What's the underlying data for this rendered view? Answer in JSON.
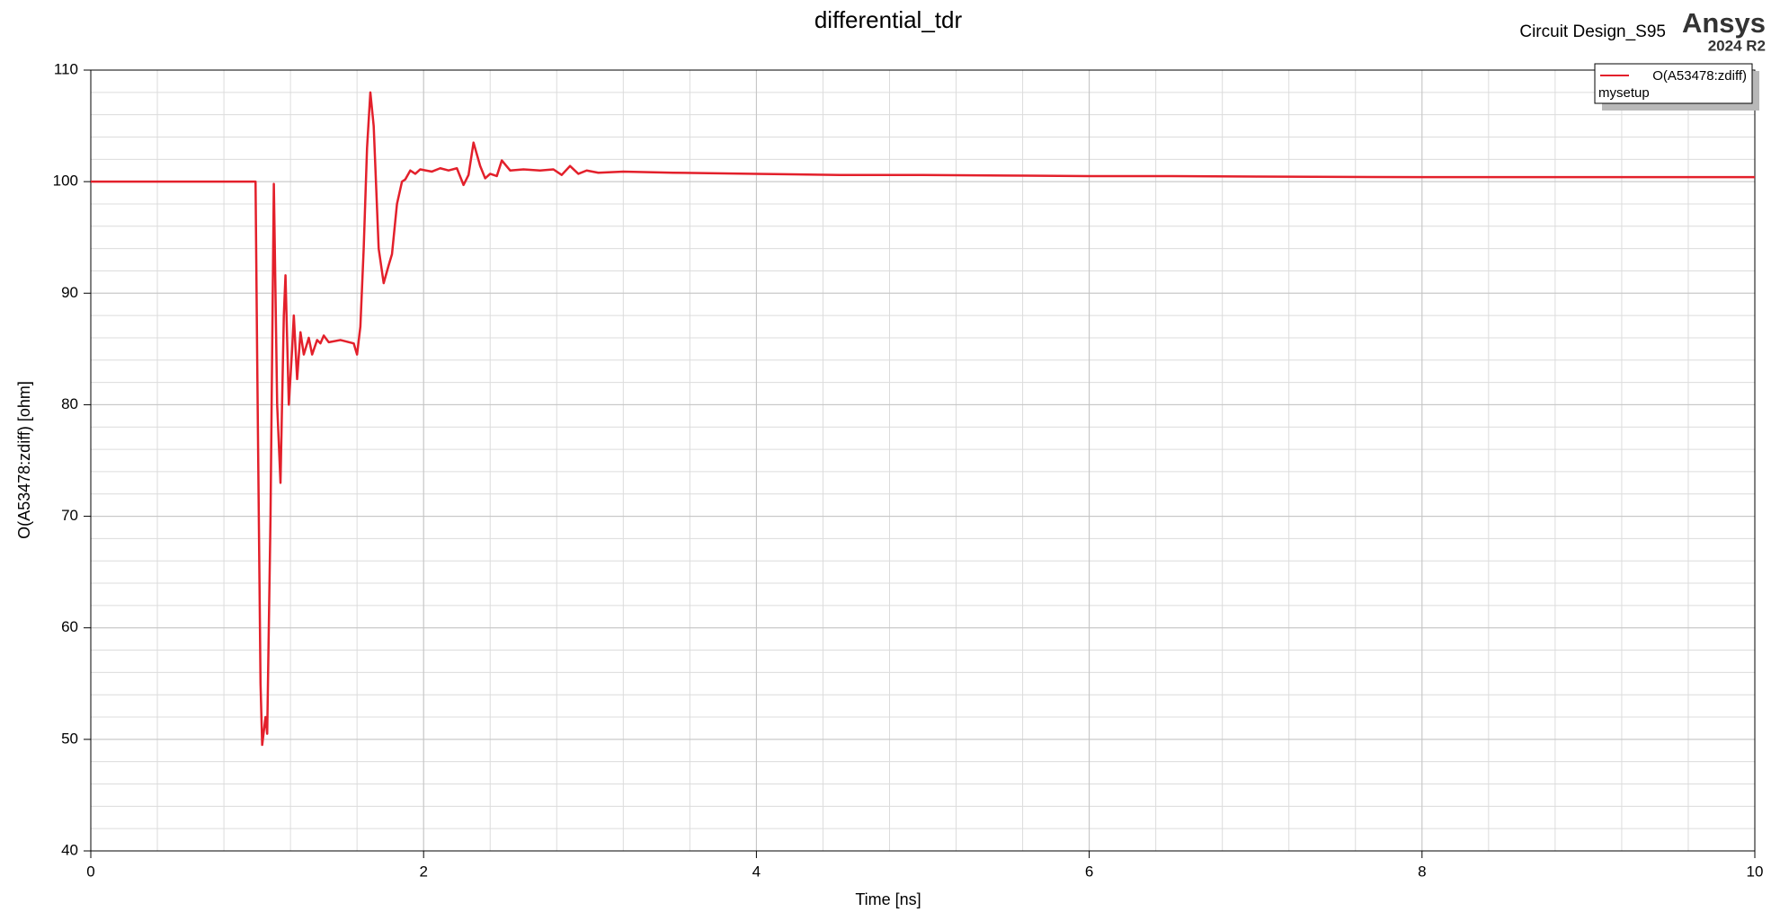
{
  "chart_data": {
    "type": "line",
    "title": "differential_tdr",
    "header": {
      "design": "Circuit Design_S95",
      "brand": "Ansys",
      "version": "2024 R2"
    },
    "xlabel": "Time [ns]",
    "ylabel": "O(A53478:zdiff) [ohm]",
    "xlim": [
      0,
      10
    ],
    "ylim": [
      40,
      110
    ],
    "xticks": [
      0,
      2,
      4,
      6,
      8,
      10
    ],
    "yticks": [
      40,
      50,
      60,
      70,
      80,
      90,
      100,
      110
    ],
    "xminor_step": 0.4,
    "yminor_step": 2,
    "grid": true,
    "legend": "upper right",
    "legend_subtitle": "mysetup",
    "x": [
      0,
      0.99,
      1.0,
      1.02,
      1.03,
      1.05,
      1.06,
      1.08,
      1.1,
      1.12,
      1.14,
      1.16,
      1.17,
      1.19,
      1.21,
      1.22,
      1.24,
      1.26,
      1.28,
      1.31,
      1.33,
      1.36,
      1.38,
      1.4,
      1.43,
      1.5,
      1.58,
      1.6,
      1.62,
      1.64,
      1.66,
      1.68,
      1.7,
      1.73,
      1.76,
      1.79,
      1.81,
      1.84,
      1.87,
      1.89,
      1.92,
      1.95,
      1.98,
      2.05,
      2.1,
      2.15,
      2.2,
      2.24,
      2.27,
      2.3,
      2.34,
      2.37,
      2.4,
      2.44,
      2.47,
      2.52,
      2.6,
      2.7,
      2.78,
      2.83,
      2.88,
      2.93,
      2.98,
      3.05,
      3.2,
      3.5,
      4.0,
      4.5,
      5.0,
      5.5,
      6.0,
      6.5,
      7.0,
      8.0,
      9.0,
      10
    ],
    "series": [
      {
        "name": "O(A53478:zdiff)",
        "color": "#e3202b",
        "values": [
          100,
          100,
          84,
          55,
          49.5,
          52,
          50.5,
          70,
          99.8,
          80,
          73,
          88,
          91.6,
          80,
          85,
          88,
          82.3,
          86.5,
          84.5,
          86,
          84.5,
          85.8,
          85.5,
          86.2,
          85.6,
          85.8,
          85.5,
          84.5,
          87,
          94,
          103,
          108,
          105,
          94,
          90.9,
          92.5,
          93.5,
          98,
          100,
          100.2,
          101,
          100.7,
          101.1,
          100.9,
          101.2,
          101,
          101.2,
          99.7,
          100.6,
          103.5,
          101.4,
          100.3,
          100.7,
          100.5,
          101.9,
          101,
          101.1,
          101,
          101.1,
          100.6,
          101.4,
          100.7,
          101,
          100.8,
          100.9,
          100.8,
          100.7,
          100.6,
          100.6,
          100.55,
          100.5,
          100.5,
          100.45,
          100.4,
          100.4,
          100.4
        ]
      }
    ]
  }
}
